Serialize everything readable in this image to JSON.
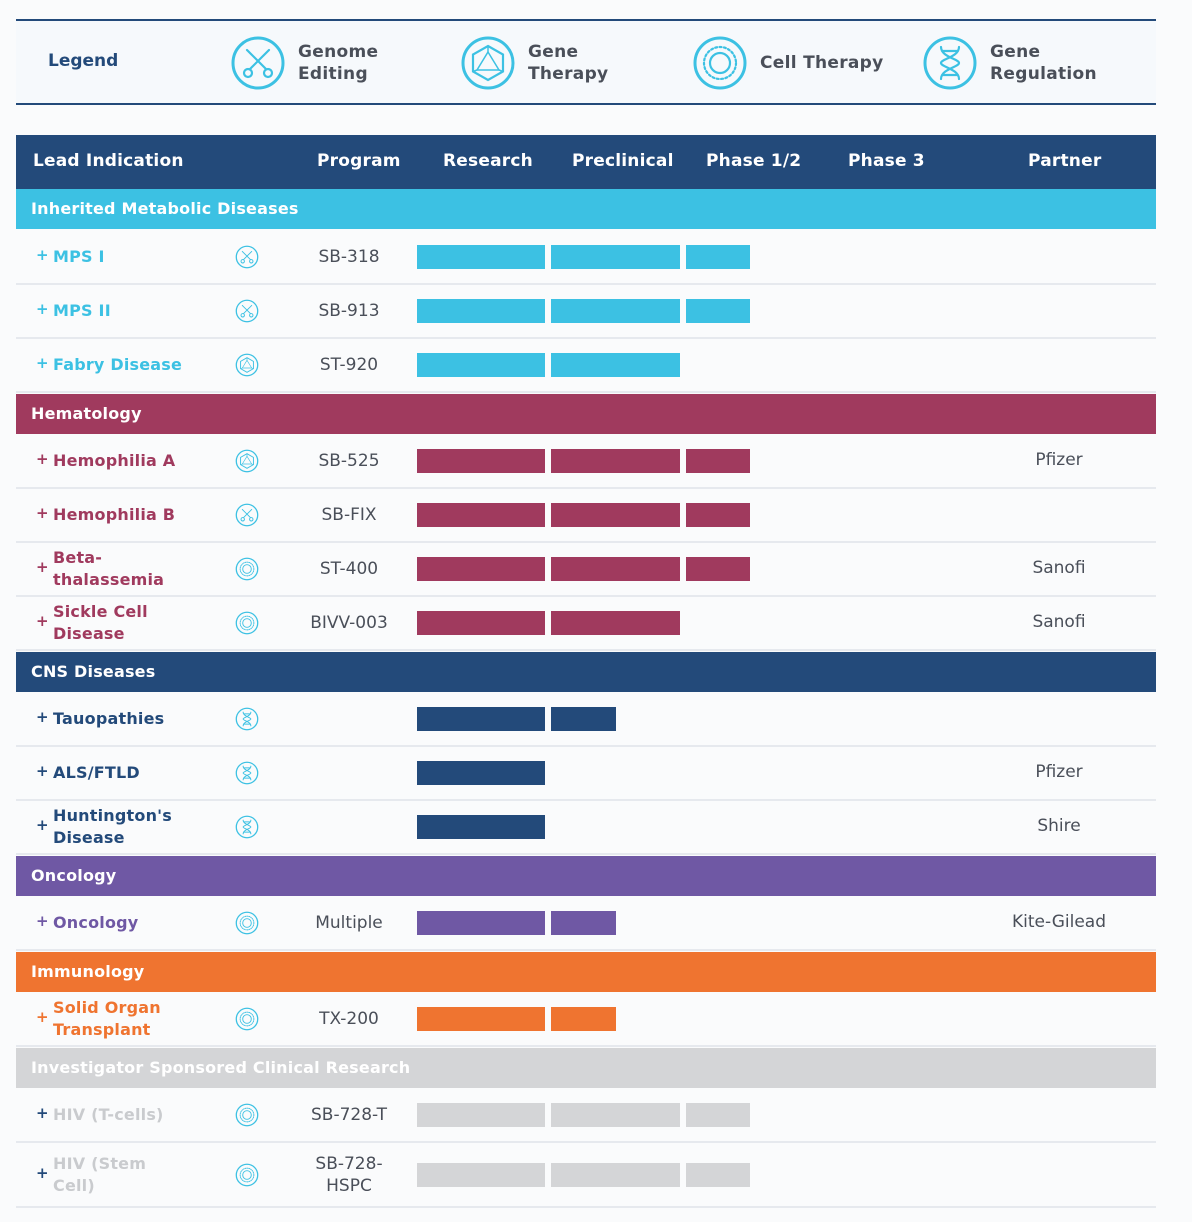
{
  "legend": {
    "title": "Legend",
    "items": [
      {
        "icon": "scissors-icon",
        "line1": "Genome",
        "line2": "Editing"
      },
      {
        "icon": "hexagon-icon",
        "line1": "Gene Therapy",
        "line2": ""
      },
      {
        "icon": "cell-icon",
        "line1": "Cell Therapy",
        "line2": ""
      },
      {
        "icon": "dna-icon",
        "line1": "Gene",
        "line2": "Regulation"
      }
    ]
  },
  "colors": {
    "navy": "#234a7a",
    "cyan": "#3cc1e3",
    "crimson": "#a03a5e",
    "purple": "#6f58a4",
    "orange": "#ef7430",
    "gray": "#d4d5d7",
    "gray_text": "#c9cbce",
    "icon": "#3cc1e3"
  },
  "table": {
    "headers": {
      "indication": "Lead Indication",
      "program": "Program",
      "research": "Research",
      "preclinical": "Preclinical",
      "phase12": "Phase 1/2",
      "phase3": "Phase 3",
      "partner": "Partner"
    },
    "categories": [
      {
        "name": "Inherited Metabolic Diseases",
        "color": "cyan",
        "rows": [
          {
            "indication": "MPS I",
            "icon": "scissors-icon",
            "program": "SB-318",
            "stages": 3,
            "partner": ""
          },
          {
            "indication": "MPS II",
            "icon": "scissors-icon",
            "program": "SB-913",
            "stages": 3,
            "partner": ""
          },
          {
            "indication": "Fabry Disease",
            "icon": "hexagon-icon",
            "program": "ST-920",
            "stages": 2,
            "partner": ""
          }
        ]
      },
      {
        "name": "Hematology",
        "color": "crimson",
        "rows": [
          {
            "indication": "Hemophilia A",
            "icon": "hexagon-icon",
            "program": "SB-525",
            "stages": 3,
            "partner": "Pfizer"
          },
          {
            "indication": "Hemophilia B",
            "icon": "scissors-icon",
            "program": "SB-FIX",
            "stages": 3,
            "partner": ""
          },
          {
            "indication": "Beta-thalassemia",
            "icon": "cell-icon",
            "program": "ST-400",
            "stages": 3,
            "partner": "Sanofi"
          },
          {
            "indication": "Sickle Cell Disease",
            "icon": "cell-icon",
            "program": "BIVV-003",
            "stages": 2,
            "partner": "Sanofi"
          }
        ]
      },
      {
        "name": "CNS Diseases",
        "color": "navy",
        "rows": [
          {
            "indication": "Tauopathies",
            "icon": "dna-icon",
            "program": "",
            "stages": 1.5,
            "partner": ""
          },
          {
            "indication": "ALS/FTLD",
            "icon": "dna-icon",
            "program": "",
            "stages": 1,
            "partner": "Pfizer"
          },
          {
            "indication": "Huntington's Disease",
            "icon": "dna-icon",
            "program": "",
            "stages": 1,
            "partner": "Shire"
          }
        ]
      },
      {
        "name": "Oncology",
        "color": "purple",
        "rows": [
          {
            "indication": "Oncology",
            "icon": "cell-icon",
            "program": "Multiple",
            "stages": 1.5,
            "partner": "Kite-Gilead"
          }
        ]
      },
      {
        "name": "Immunology",
        "color": "orange",
        "rows": [
          {
            "indication": "Solid Organ Transplant",
            "icon": "cell-icon",
            "program": "TX-200",
            "stages": 1.5,
            "partner": ""
          }
        ]
      },
      {
        "name": "Investigator Sponsored Clinical Research",
        "color": "gray",
        "rows": [
          {
            "indication": "HIV (T-cells)",
            "icon": "cell-icon",
            "program": "SB-728-T",
            "stages": 3,
            "partner": ""
          },
          {
            "indication": "HIV (Stem Cell)",
            "icon": "cell-icon",
            "program": "SB-728-HSPC",
            "stages": 3,
            "partner": ""
          }
        ]
      }
    ]
  }
}
